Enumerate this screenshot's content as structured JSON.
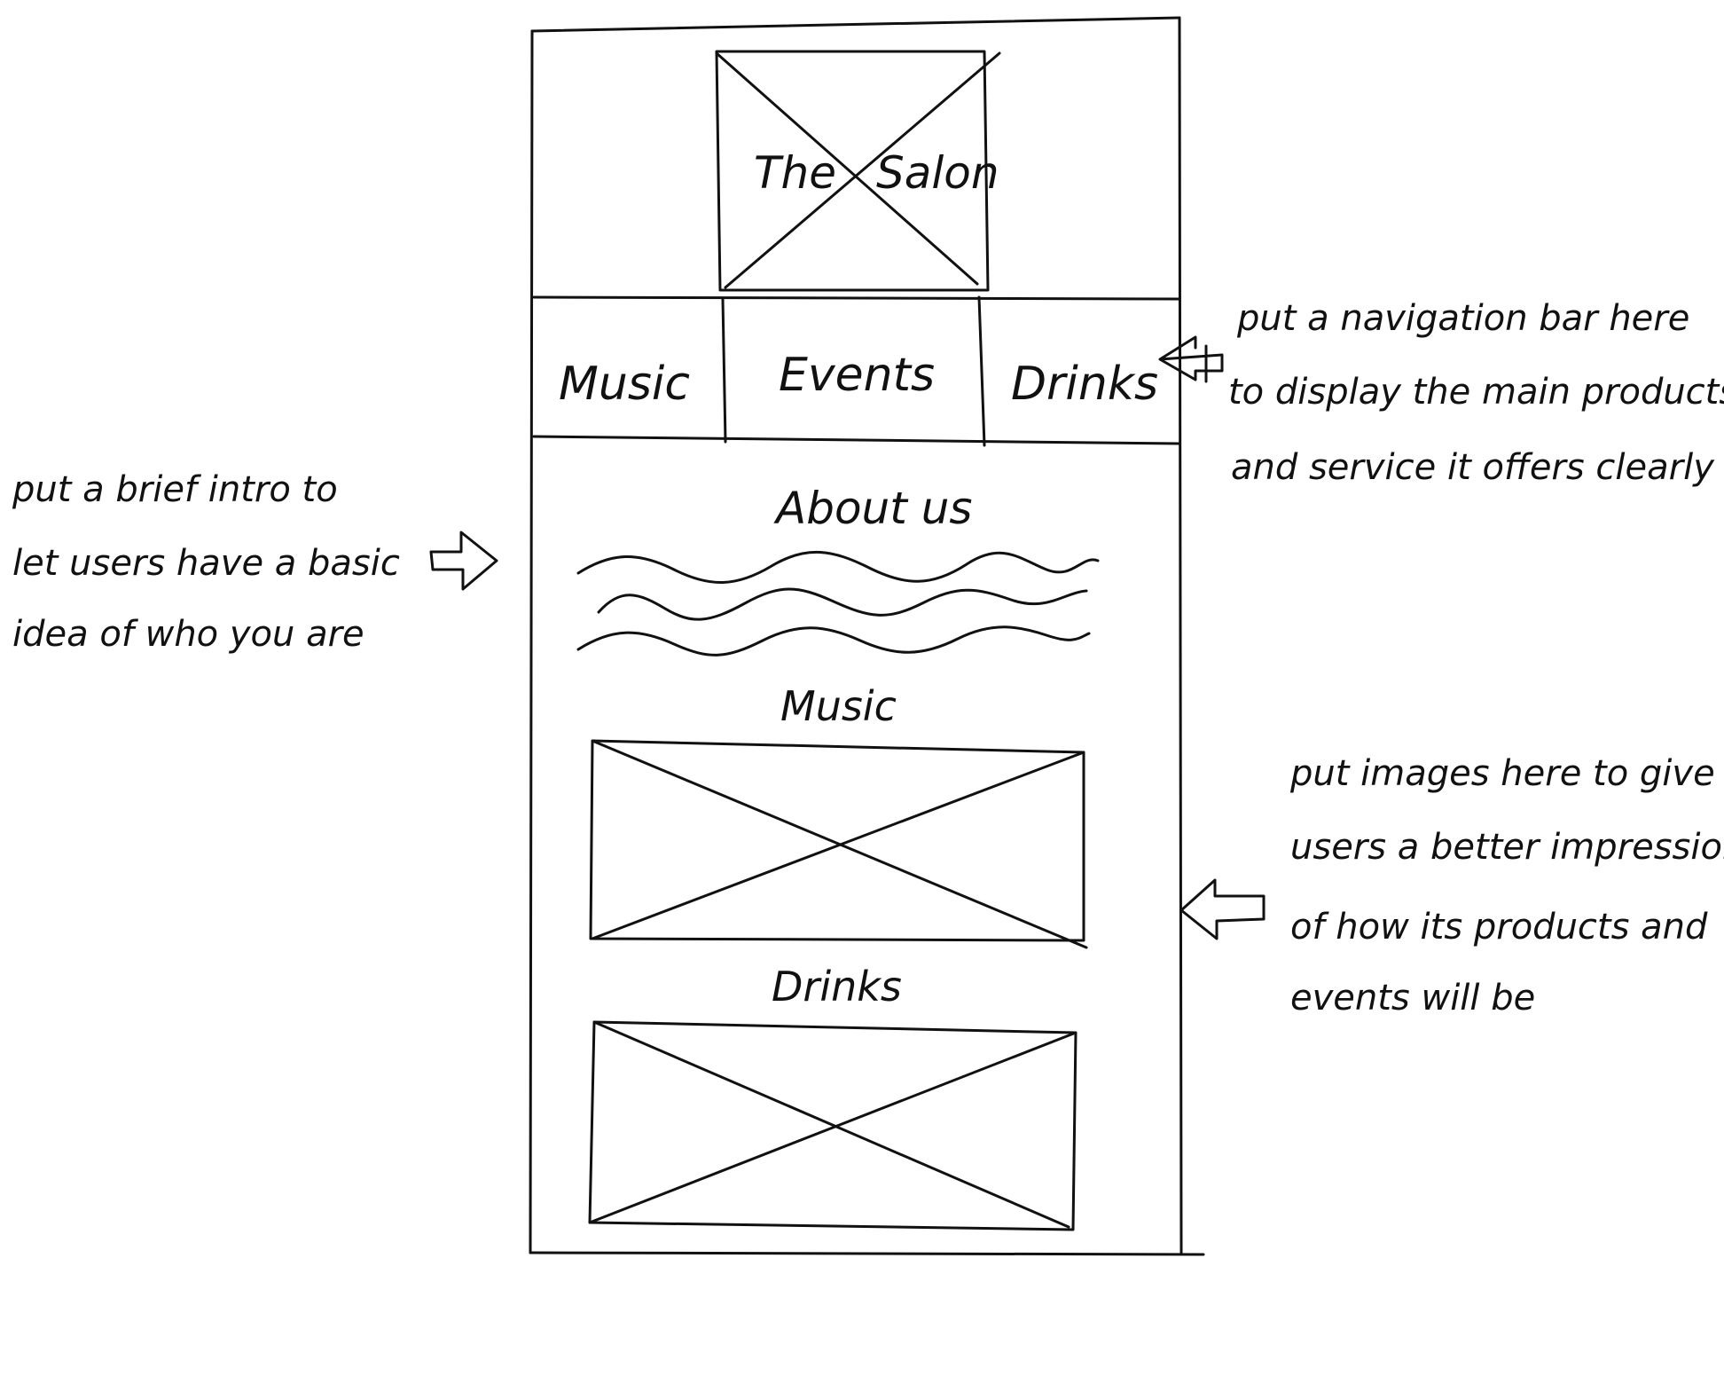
{
  "wireframe": {
    "logo": {
      "text_left": "The",
      "text_right": "Salon"
    },
    "nav": {
      "items": [
        {
          "label": "Music"
        },
        {
          "label": "Events"
        },
        {
          "label": "Drinks"
        }
      ]
    },
    "about": {
      "heading": "About us"
    },
    "sections": [
      {
        "heading": "Music"
      },
      {
        "heading": "Drinks"
      }
    ]
  },
  "annotations": {
    "nav_note": {
      "lines": [
        "put a navigation bar here",
        "to display the main products",
        "and service it offers clearly"
      ]
    },
    "intro_note": {
      "lines": [
        "put a brief intro to",
        "let users have a basic",
        "idea of who you are"
      ]
    },
    "images_note": {
      "lines": [
        "put images here to give",
        "users a better impression",
        "of how its products and",
        "events will be"
      ]
    }
  },
  "colors": {
    "ink": "#111111",
    "paper": "#ffffff"
  }
}
